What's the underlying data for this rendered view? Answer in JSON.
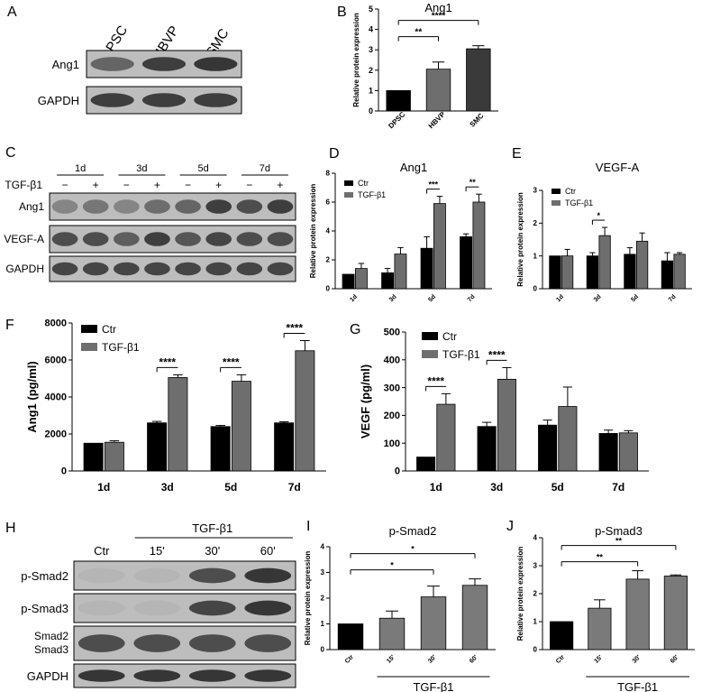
{
  "colors": {
    "black_bar": "#000000",
    "dark_gray_bar": "#3a3a3a",
    "mid_gray_bar": "#6e6e6e",
    "light_gray_bar": "#7a7a7a",
    "blot_dark": "#1e1e1e",
    "blot_bg": "#bdbdbd"
  },
  "panels": [
    {
      "id": "A",
      "type": "blot",
      "lanes": [
        "DPSC",
        "HBVP",
        "SMC"
      ],
      "rows": [
        {
          "label": "Ang1",
          "bands": [
            0.55,
            0.8,
            0.85
          ]
        },
        {
          "label": "GAPDH",
          "bands": [
            0.8,
            0.8,
            0.8
          ]
        }
      ]
    },
    {
      "id": "C",
      "type": "blot",
      "time_labels": [
        "1d",
        "3d",
        "5d",
        "7d"
      ],
      "treatment_label": "TGF-β1",
      "signs": [
        "−",
        "+",
        "−",
        "+",
        "−",
        "+",
        "−",
        "+"
      ],
      "rows": [
        {
          "label": "Ang1",
          "bands": [
            0.35,
            0.45,
            0.35,
            0.5,
            0.55,
            0.8,
            0.7,
            0.8
          ]
        },
        {
          "label": "VEGF-A",
          "bands": [
            0.7,
            0.7,
            0.6,
            0.8,
            0.65,
            0.75,
            0.7,
            0.7
          ]
        },
        {
          "label": "GAPDH",
          "bands": [
            0.75,
            0.75,
            0.75,
            0.75,
            0.75,
            0.75,
            0.75,
            0.75
          ]
        }
      ]
    },
    {
      "id": "H",
      "type": "blot",
      "treatment_label": "TGF-β1",
      "lanes": [
        "Ctr",
        "15'",
        "30'",
        "60'"
      ],
      "rows": [
        {
          "label": "p-Smad2",
          "bands": [
            0.05,
            0.05,
            0.7,
            0.85
          ]
        },
        {
          "label": "p-Smad3",
          "bands": [
            0.05,
            0.05,
            0.75,
            0.85
          ]
        },
        {
          "label": "Smad2 Smad3",
          "bands": [
            0.7,
            0.7,
            0.7,
            0.7
          ]
        },
        {
          "label": "GAPDH",
          "bands": [
            0.85,
            0.85,
            0.85,
            0.85
          ]
        }
      ]
    }
  ],
  "chart_data": [
    {
      "id": "B",
      "type": "bar",
      "title": "Ang1",
      "ylabel": "Relative protein expression",
      "categories": [
        "DPSC",
        "HBVP",
        "SMC"
      ],
      "values": [
        1.0,
        2.05,
        3.05
      ],
      "errors": [
        0.0,
        0.35,
        0.15
      ],
      "ylim": [
        0,
        5
      ],
      "yticks": [
        0,
        1,
        2,
        3,
        4,
        5
      ],
      "significance": [
        {
          "from": 0,
          "to": 1,
          "label": "**"
        },
        {
          "from": 0,
          "to": 2,
          "label": "****"
        }
      ]
    },
    {
      "id": "D",
      "type": "bar",
      "title": "Ang1",
      "ylabel": "Relative protein expression",
      "categories": [
        "1d",
        "3d",
        "5d",
        "7d"
      ],
      "series": [
        {
          "name": "Ctr",
          "values": [
            1.0,
            1.1,
            2.8,
            3.6
          ],
          "errors": [
            0,
            0.3,
            0.8,
            0.2
          ]
        },
        {
          "name": "TGF-β1",
          "values": [
            1.4,
            2.4,
            5.9,
            6.0
          ],
          "errors": [
            0.35,
            0.45,
            0.5,
            0.55
          ]
        }
      ],
      "ylim": [
        0,
        8
      ],
      "yticks": [
        0,
        2,
        4,
        6,
        8
      ],
      "significance": [
        {
          "category": 2,
          "label": "***"
        },
        {
          "category": 3,
          "label": "**"
        }
      ]
    },
    {
      "id": "E",
      "type": "bar",
      "title": "VEGF-A",
      "ylabel": "Relative protein expression",
      "categories": [
        "1d",
        "3d",
        "5d",
        "7d"
      ],
      "series": [
        {
          "name": "Ctr",
          "values": [
            1.0,
            1.0,
            1.05,
            0.85
          ],
          "errors": [
            0,
            0.1,
            0.2,
            0.25
          ]
        },
        {
          "name": "TGF-β1",
          "values": [
            1.0,
            1.62,
            1.45,
            1.05
          ],
          "errors": [
            0.2,
            0.25,
            0.25,
            0.05
          ]
        }
      ],
      "ylim": [
        0,
        3
      ],
      "yticks": [
        0,
        1,
        2,
        3
      ],
      "significance": [
        {
          "category": 1,
          "label": "*"
        }
      ]
    },
    {
      "id": "F",
      "type": "bar",
      "title": "",
      "ylabel": "Ang1 (pg/ml)",
      "categories": [
        "1d",
        "3d",
        "5d",
        "7d"
      ],
      "series": [
        {
          "name": "Ctr",
          "values": [
            1500,
            2600,
            2400,
            2600
          ],
          "errors": [
            0,
            80,
            60,
            60
          ]
        },
        {
          "name": "TGF-β1",
          "values": [
            1550,
            5050,
            4850,
            6500
          ],
          "errors": [
            80,
            150,
            350,
            550
          ]
        }
      ],
      "ylim": [
        0,
        8000
      ],
      "yticks": [
        0,
        2000,
        4000,
        6000,
        8000
      ],
      "significance": [
        {
          "category": 1,
          "label": "****"
        },
        {
          "category": 2,
          "label": "****"
        },
        {
          "category": 3,
          "label": "****"
        }
      ]
    },
    {
      "id": "G",
      "type": "bar",
      "title": "",
      "ylabel": "VEGF (pg/ml)",
      "categories": [
        "1d",
        "3d",
        "5d",
        "7d"
      ],
      "series": [
        {
          "name": "Ctr",
          "values": [
            50,
            160,
            165,
            135
          ],
          "errors": [
            0,
            15,
            18,
            12
          ]
        },
        {
          "name": "TGF-β1",
          "values": [
            240,
            330,
            232,
            137
          ],
          "errors": [
            38,
            42,
            70,
            8
          ]
        }
      ],
      "ylim": [
        0,
        500
      ],
      "yticks": [
        0,
        100,
        200,
        300,
        400,
        500
      ],
      "significance": [
        {
          "category": 0,
          "label": "****"
        },
        {
          "category": 1,
          "label": "****"
        }
      ]
    },
    {
      "id": "I",
      "type": "bar",
      "title": "p-Smad2",
      "ylabel": "Relative protein expression",
      "categories": [
        "Ctr",
        "15'",
        "30'",
        "60'"
      ],
      "values": [
        1.0,
        1.22,
        2.05,
        2.5
      ],
      "errors": [
        0,
        0.28,
        0.42,
        0.25
      ],
      "ylim": [
        0,
        4
      ],
      "yticks": [
        0,
        1,
        2,
        3,
        4
      ],
      "group_label": "TGF-β1",
      "significance": [
        {
          "from": 0,
          "to": 2,
          "label": "*"
        },
        {
          "from": 0,
          "to": 3,
          "label": "*"
        }
      ]
    },
    {
      "id": "J",
      "type": "bar",
      "title": "p-Smad3",
      "ylabel": "Relative protein expression",
      "categories": [
        "Ctr",
        "15'",
        "30'",
        "60'"
      ],
      "values": [
        1.0,
        1.48,
        2.52,
        2.63
      ],
      "errors": [
        0,
        0.3,
        0.3,
        0.04
      ],
      "ylim": [
        0,
        4
      ],
      "yticks": [
        0,
        1,
        2,
        3,
        4
      ],
      "group_label": "TGF-β1",
      "significance": [
        {
          "from": 0,
          "to": 2,
          "label": "**"
        },
        {
          "from": 0,
          "to": 3,
          "label": "**"
        }
      ]
    }
  ]
}
